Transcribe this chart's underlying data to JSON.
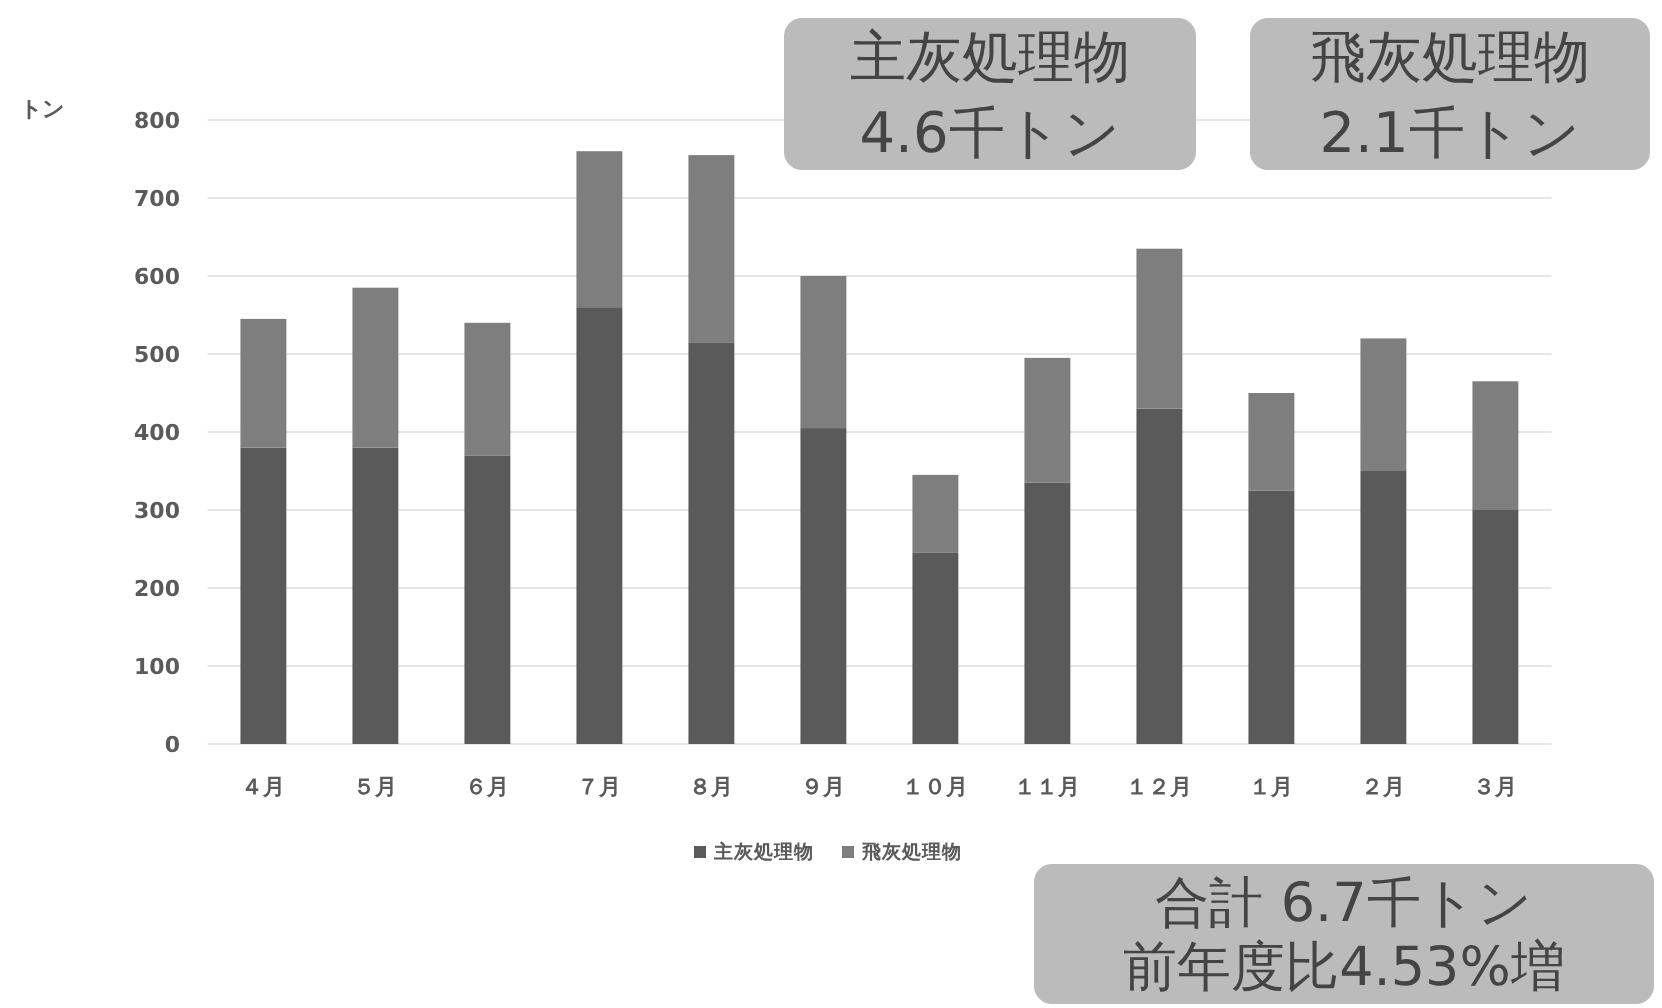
{
  "chart_data": {
    "type": "bar",
    "stacked": true,
    "ylabel": "トン",
    "categories": [
      "４月",
      "５月",
      "６月",
      "７月",
      "８月",
      "９月",
      "１０月",
      "１１月",
      "１２月",
      "１月",
      "２月",
      "３月"
    ],
    "series": [
      {
        "name": "主灰処理物",
        "color": "#5a5a5a",
        "values": [
          380,
          380,
          370,
          560,
          515,
          405,
          245,
          335,
          430,
          325,
          350,
          300
        ]
      },
      {
        "name": "飛灰処理物",
        "color": "#7e7e7e",
        "values": [
          165,
          205,
          170,
          200,
          240,
          195,
          100,
          160,
          205,
          125,
          170,
          165
        ]
      }
    ],
    "ylim": [
      0,
      800
    ],
    "yticks": [
      0,
      100,
      200,
      300,
      400,
      500,
      600,
      700,
      800
    ],
    "grid": "y",
    "legend": "bottom",
    "annotations": [
      "主灰処理物",
      "4.6千トン",
      "飛灰処理物",
      "2.1千トン",
      "合計 6.7千トン",
      "前年度比4.53%増"
    ]
  }
}
